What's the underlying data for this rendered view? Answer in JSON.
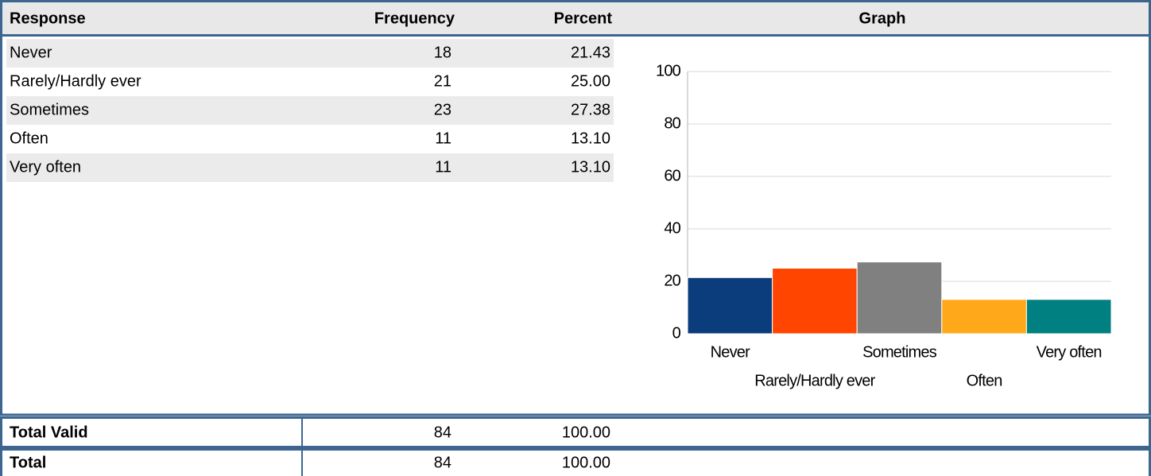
{
  "table": {
    "header": [
      "Response",
      "Frequency",
      "Percent",
      "Graph"
    ],
    "rows": [
      [
        "Never",
        "18",
        "21.43"
      ],
      [
        "Rarely/Hardly ever",
        "21",
        "25.00"
      ],
      [
        "Sometimes",
        "23",
        "27.38"
      ],
      [
        "Often",
        "11",
        "13.10"
      ],
      [
        "Very often",
        "11",
        "13.10"
      ]
    ],
    "totals": [
      [
        "Total Valid",
        "84",
        "100.00"
      ],
      [
        "Total",
        "84",
        "100.00"
      ]
    ]
  },
  "chart_data": {
    "type": "bar",
    "categories": [
      "Never",
      "Rarely/Hardly ever",
      "Sometimes",
      "Often",
      "Very often"
    ],
    "values": [
      21.43,
      25,
      27.38,
      13.1,
      13.1
    ],
    "colors": [
      "#0b3c7b",
      "#ff4500",
      "#808080",
      "#ffa91a",
      "#008080"
    ],
    "ylim": [
      0,
      100
    ],
    "yticks": [
      0,
      20,
      40,
      60,
      80,
      100
    ],
    "grid": true
  }
}
